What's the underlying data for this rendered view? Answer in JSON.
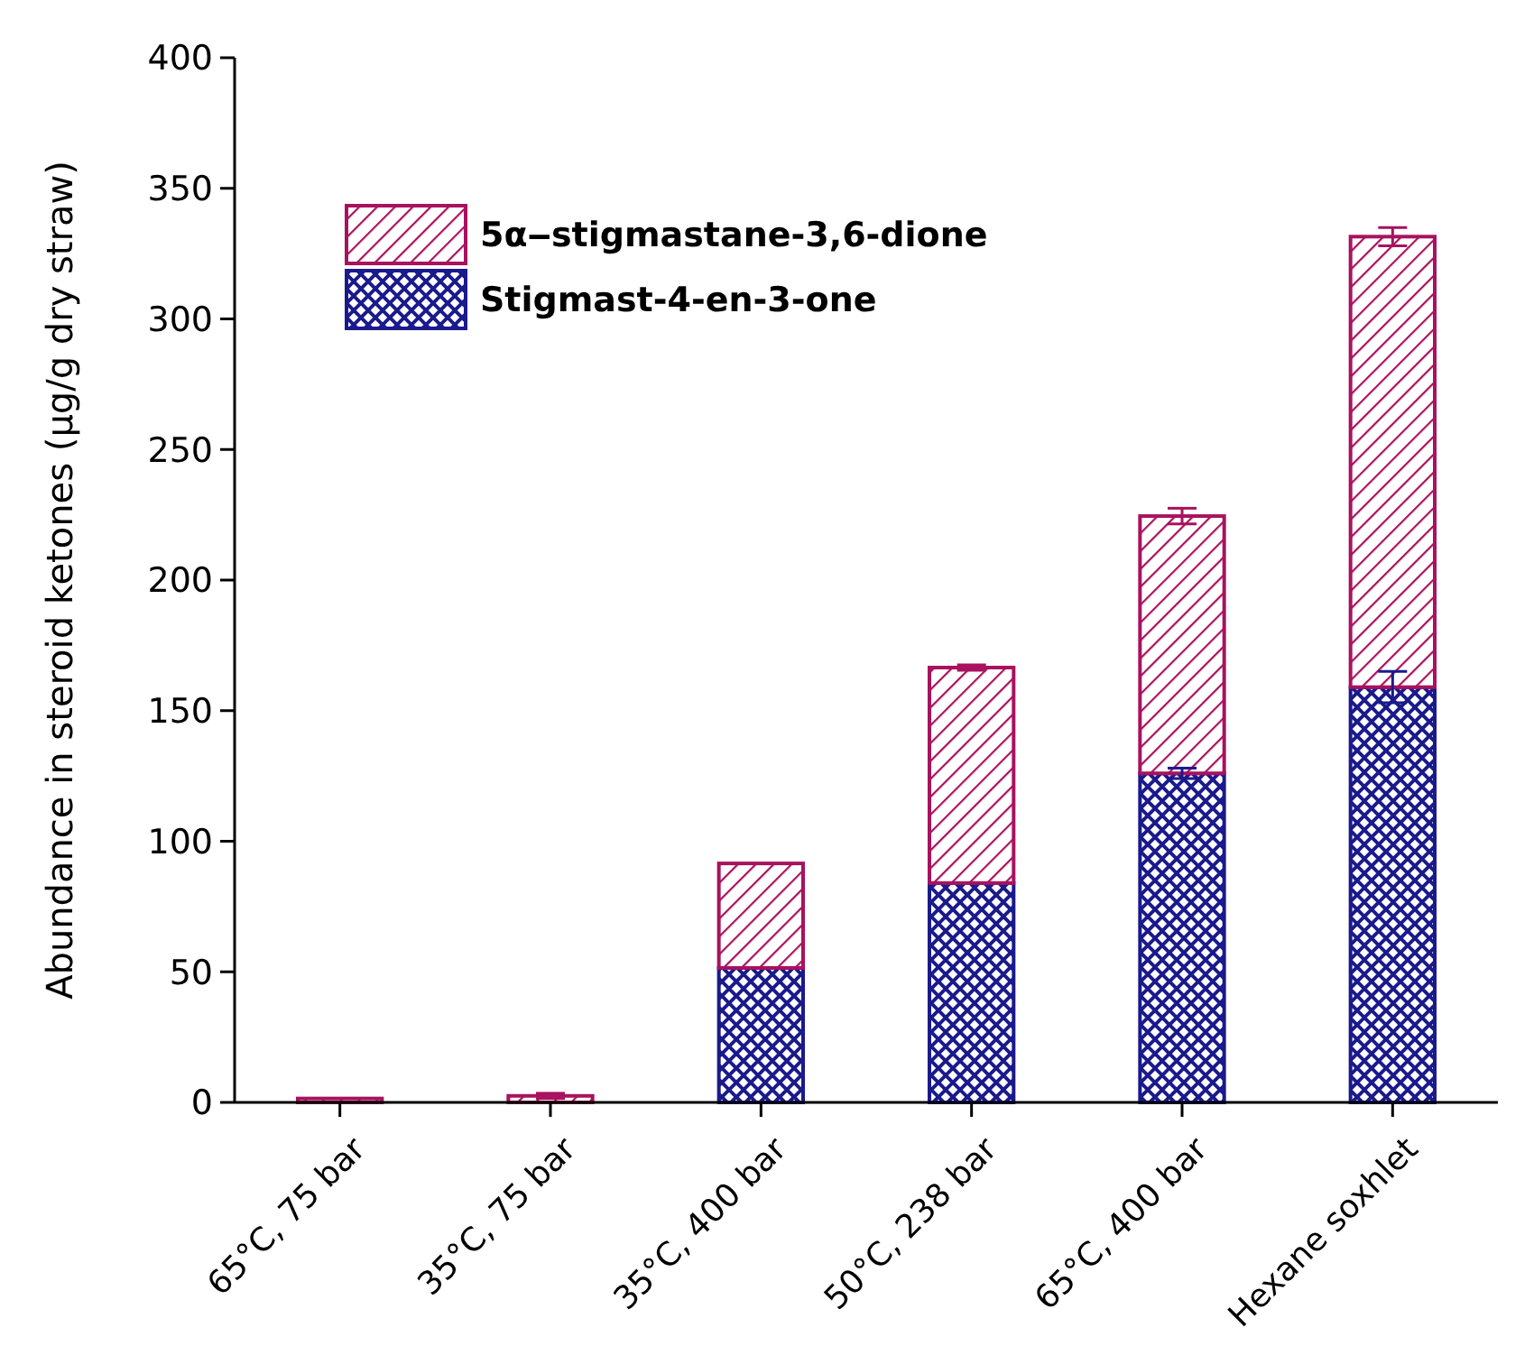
{
  "chart_data": {
    "type": "bar",
    "stacked": true,
    "ylabel": "Abundance in steroid ketones (µg/g dry straw)",
    "categories": [
      "65°C, 75 bar",
      "35°C, 75 bar",
      "35°C, 400 bar",
      "50°C, 238 bar",
      "65°C, 400 bar",
      "Hexane soxhlet"
    ],
    "series": [
      {
        "name": "Stigmast-4-en-3-one",
        "color": "#1a1a8c",
        "values": [
          0,
          0,
          51.5,
          84,
          126,
          159
        ],
        "errors": [
          null,
          null,
          null,
          null,
          2,
          6
        ]
      },
      {
        "name": "5α‒stigmastane-3,6-dione",
        "color": "#a8125e",
        "values": [
          1.5,
          2.5,
          40,
          82.5,
          98.5,
          172.5
        ],
        "errors": [
          null,
          1,
          null,
          1,
          3,
          3.5
        ]
      }
    ],
    "ylim": [
      0,
      400
    ],
    "yticks": [
      0,
      50,
      100,
      150,
      200,
      250,
      300,
      350,
      400
    ],
    "grid": false,
    "legend": "top left"
  }
}
